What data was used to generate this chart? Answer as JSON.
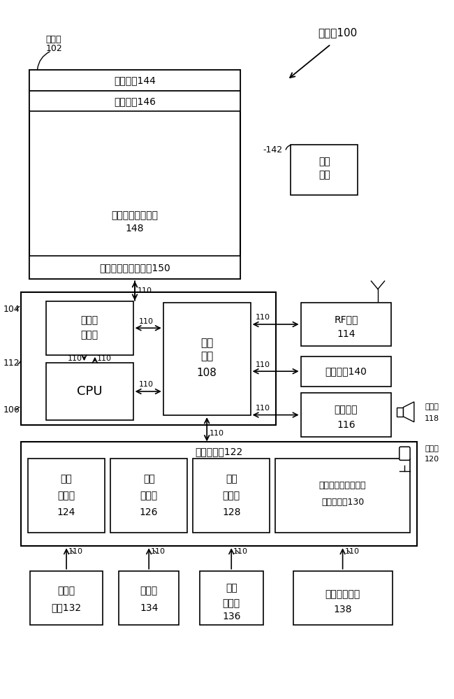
{
  "bg_color": "#ffffff",
  "lc": "#000000",
  "labels": {
    "robot": "机器人100",
    "storage_lbl": "存储器",
    "storage_num": "102",
    "power_text1": "电源",
    "power_text2": "系统",
    "power_num": "142",
    "os": "操作系统144",
    "comm": "通信模块146",
    "interact1": "交互行为控制装置",
    "interact2": "148",
    "other_dev": "一个或多个其他装置150",
    "mem_ctrl1": "存储器",
    "mem_ctrl2": "控制器",
    "periph1": "外设",
    "periph2": "接口",
    "periph3": "108",
    "cpu": "CPU",
    "rf1": "RF电路",
    "rf2": "114",
    "ext1": "外部接口140",
    "audio1": "音频电路",
    "audio2": "116",
    "speaker_lbl": "扬声器",
    "speaker_num": "118",
    "mic_lbl": "麦克风",
    "mic_num": "120",
    "sense_sys": "感知子系统122",
    "gesture_c1": "姿态",
    "gesture_c2": "控制器",
    "gesture_c3": "124",
    "vision_c1": "视觉",
    "vision_c2": "控制器",
    "vision_c3": "126",
    "touch_c1": "触觉",
    "touch_c2": "控制器",
    "touch_c3": "128",
    "other_c1": "一个或多个其他感知",
    "other_c2": "装置控制器130",
    "gesture_s1": "姿态传",
    "gesture_s2": "感器132",
    "camera1": "摄像机",
    "camera2": "134",
    "touch_s1": "触觉",
    "touch_s2": "传感器",
    "touch_s3": "136",
    "other_s1": "其他感知装置",
    "other_s2": "138",
    "bus": "110",
    "n104": "104",
    "n106": "106",
    "n112": "112"
  }
}
